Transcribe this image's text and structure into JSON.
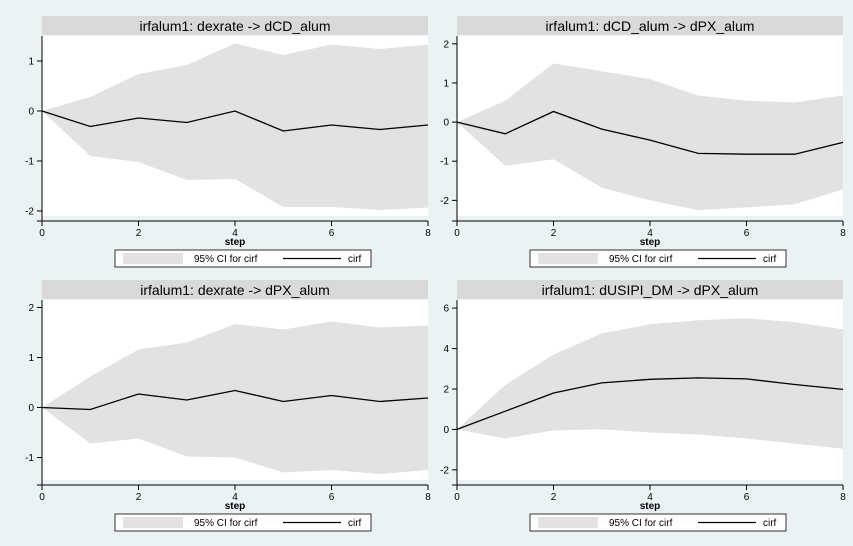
{
  "colors": {
    "background": "#eaf2f3",
    "plot_region": "#ffffff",
    "title_bar": "#d9d9d9",
    "ci_band": "#e2e2e2",
    "line": "#000000"
  },
  "chart_data": [
    {
      "type": "area",
      "title": "irfalum1: dexrate -> dCD_alum",
      "xlabel": "step",
      "ylabel": "",
      "x": [
        0,
        1,
        2,
        3,
        4,
        5,
        6,
        7,
        8
      ],
      "xticks": [
        0,
        2,
        4,
        6,
        8
      ],
      "yticks": [
        -2,
        -1,
        0,
        1
      ],
      "xlim": [
        0,
        8
      ],
      "ylim": [
        -2.1,
        1.5
      ],
      "series": [
        {
          "name": "95% CI for cirf",
          "kind": "band",
          "lower": [
            0,
            -0.9,
            -1.02,
            -1.38,
            -1.36,
            -1.92,
            -1.92,
            -1.98,
            -1.93
          ],
          "upper": [
            0,
            0.28,
            0.74,
            0.92,
            1.35,
            1.12,
            1.33,
            1.24,
            1.33
          ]
        },
        {
          "name": "cirf",
          "kind": "line",
          "values": [
            0,
            -0.31,
            -0.14,
            -0.23,
            0.0,
            -0.4,
            -0.28,
            -0.37,
            -0.28
          ]
        }
      ],
      "legend": {
        "placement": "bottom",
        "entries": [
          "95% CI for cirf",
          "cirf"
        ]
      }
    },
    {
      "type": "area",
      "title": "irfalum1: dCD_alum -> dPX_alum",
      "xlabel": "step",
      "ylabel": "",
      "x": [
        0,
        1,
        2,
        3,
        4,
        5,
        6,
        7,
        8
      ],
      "xticks": [
        0,
        2,
        4,
        6,
        8
      ],
      "yticks": [
        -2,
        -1,
        0,
        1,
        2
      ],
      "xlim": [
        0,
        8
      ],
      "ylim": [
        -2.4,
        2.2
      ],
      "series": [
        {
          "name": "95% CI for cirf",
          "kind": "band",
          "lower": [
            0,
            -1.12,
            -0.95,
            -1.68,
            -2.0,
            -2.25,
            -2.18,
            -2.1,
            -1.72
          ],
          "upper": [
            0,
            0.55,
            1.5,
            1.3,
            1.1,
            0.68,
            0.55,
            0.5,
            0.68
          ]
        },
        {
          "name": "cirf",
          "kind": "line",
          "values": [
            0,
            -0.3,
            0.27,
            -0.18,
            -0.46,
            -0.8,
            -0.82,
            -0.82,
            -0.52
          ]
        }
      ],
      "legend": {
        "placement": "bottom",
        "entries": [
          "95% CI for cirf",
          "cirf"
        ]
      }
    },
    {
      "type": "area",
      "title": "irfalum1: dexrate -> dPX_alum",
      "xlabel": "step",
      "ylabel": "",
      "x": [
        0,
        1,
        2,
        3,
        4,
        5,
        6,
        7,
        8
      ],
      "xticks": [
        0,
        2,
        4,
        6,
        8
      ],
      "yticks": [
        -1,
        0,
        1,
        2
      ],
      "xlim": [
        0,
        8
      ],
      "ylim": [
        -1.45,
        2.15
      ],
      "series": [
        {
          "name": "95% CI for cirf",
          "kind": "band",
          "lower": [
            0,
            -0.72,
            -0.62,
            -0.98,
            -1.0,
            -1.3,
            -1.25,
            -1.33,
            -1.25
          ],
          "upper": [
            0,
            0.62,
            1.16,
            1.3,
            1.67,
            1.56,
            1.72,
            1.6,
            1.64
          ]
        },
        {
          "name": "cirf",
          "kind": "line",
          "values": [
            0,
            -0.04,
            0.27,
            0.15,
            0.34,
            0.12,
            0.24,
            0.12,
            0.19
          ]
        }
      ],
      "legend": {
        "placement": "bottom",
        "entries": [
          "95% CI for cirf",
          "cirf"
        ]
      }
    },
    {
      "type": "area",
      "title": "irfalum1: dUSIPI_DM -> dPX_alum",
      "xlabel": "step",
      "ylabel": "",
      "x": [
        0,
        1,
        2,
        3,
        4,
        5,
        6,
        7,
        8
      ],
      "xticks": [
        0,
        2,
        4,
        6,
        8
      ],
      "yticks": [
        -2,
        0,
        2,
        4,
        6
      ],
      "xlim": [
        0,
        8
      ],
      "ylim": [
        -2.5,
        6.4
      ],
      "series": [
        {
          "name": "95% CI for cirf",
          "kind": "band",
          "lower": [
            0,
            -0.45,
            -0.05,
            0.0,
            -0.15,
            -0.25,
            -0.45,
            -0.7,
            -0.95
          ],
          "upper": [
            0,
            2.2,
            3.7,
            4.75,
            5.2,
            5.4,
            5.5,
            5.3,
            4.95
          ]
        },
        {
          "name": "cirf",
          "kind": "line",
          "values": [
            0,
            0.9,
            1.8,
            2.3,
            2.48,
            2.55,
            2.5,
            2.22,
            1.98
          ]
        }
      ],
      "legend": {
        "placement": "bottom",
        "entries": [
          "95% CI for cirf",
          "cirf"
        ]
      }
    }
  ]
}
